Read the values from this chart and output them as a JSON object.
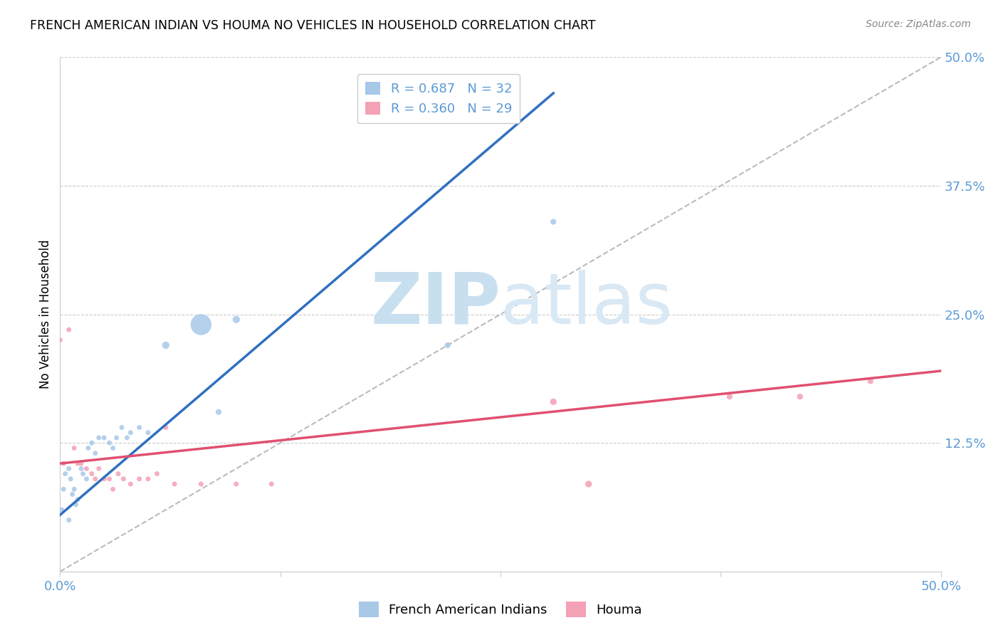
{
  "title": "FRENCH AMERICAN INDIAN VS HOUMA NO VEHICLES IN HOUSEHOLD CORRELATION CHART",
  "source": "Source: ZipAtlas.com",
  "ylabel": "No Vehicles in Household",
  "legend_blue_R": "R = 0.687",
  "legend_blue_N": "N = 32",
  "legend_pink_R": "R = 0.360",
  "legend_pink_N": "N = 29",
  "legend_label_blue": "French American Indians",
  "legend_label_pink": "Houma",
  "blue_color": "#a8c8e8",
  "pink_color": "#f4a0b5",
  "blue_line_color": "#3070c0",
  "pink_line_color": "#e05070",
  "diagonal_color": "#bbbbbb",
  "tick_color": "#5b9bd5",
  "watermark_color": "#c8dff0",
  "xlim": [
    0.0,
    0.5
  ],
  "ylim": [
    0.0,
    0.5
  ],
  "ytick_values": [
    0.0,
    0.125,
    0.25,
    0.375,
    0.5
  ],
  "ytick_labels": [
    "",
    "12.5%",
    "25.0%",
    "37.5%",
    "50.0%"
  ],
  "blue_scatter_x": [
    0.001,
    0.002,
    0.003,
    0.005,
    0.005,
    0.006,
    0.007,
    0.008,
    0.009,
    0.01,
    0.012,
    0.013,
    0.015,
    0.016,
    0.018,
    0.02,
    0.022,
    0.025,
    0.028,
    0.03,
    0.032,
    0.035,
    0.038,
    0.04,
    0.045,
    0.05,
    0.06,
    0.08,
    0.09,
    0.1,
    0.22,
    0.28
  ],
  "blue_scatter_y": [
    0.06,
    0.08,
    0.095,
    0.05,
    0.1,
    0.09,
    0.075,
    0.08,
    0.065,
    0.07,
    0.1,
    0.095,
    0.09,
    0.12,
    0.125,
    0.115,
    0.13,
    0.13,
    0.125,
    0.12,
    0.13,
    0.14,
    0.13,
    0.135,
    0.14,
    0.135,
    0.22,
    0.24,
    0.155,
    0.245,
    0.22,
    0.34
  ],
  "blue_scatter_sizes": [
    25,
    25,
    25,
    25,
    25,
    25,
    25,
    25,
    25,
    25,
    25,
    25,
    25,
    25,
    25,
    25,
    25,
    25,
    25,
    25,
    25,
    25,
    25,
    25,
    25,
    25,
    55,
    450,
    35,
    55,
    35,
    35
  ],
  "pink_scatter_x": [
    0.0,
    0.002,
    0.005,
    0.008,
    0.01,
    0.012,
    0.015,
    0.018,
    0.02,
    0.022,
    0.025,
    0.028,
    0.03,
    0.033,
    0.036,
    0.04,
    0.045,
    0.05,
    0.055,
    0.06,
    0.065,
    0.08,
    0.1,
    0.12,
    0.28,
    0.3,
    0.38,
    0.42,
    0.46
  ],
  "pink_scatter_y": [
    0.225,
    0.105,
    0.235,
    0.12,
    0.105,
    0.105,
    0.1,
    0.095,
    0.09,
    0.1,
    0.09,
    0.09,
    0.08,
    0.095,
    0.09,
    0.085,
    0.09,
    0.09,
    0.095,
    0.14,
    0.085,
    0.085,
    0.085,
    0.085,
    0.165,
    0.085,
    0.17,
    0.17,
    0.185
  ],
  "pink_scatter_sizes": [
    25,
    25,
    25,
    25,
    25,
    25,
    25,
    25,
    25,
    25,
    25,
    25,
    25,
    25,
    25,
    25,
    25,
    25,
    25,
    25,
    25,
    25,
    25,
    25,
    45,
    45,
    35,
    35,
    35
  ],
  "blue_line_x": [
    0.0,
    0.28
  ],
  "blue_line_y": [
    0.055,
    0.465
  ],
  "pink_line_x": [
    0.0,
    0.5
  ],
  "pink_line_y": [
    0.105,
    0.195
  ],
  "diag_line_x": [
    0.0,
    0.5
  ],
  "diag_line_y": [
    0.0,
    0.5
  ]
}
